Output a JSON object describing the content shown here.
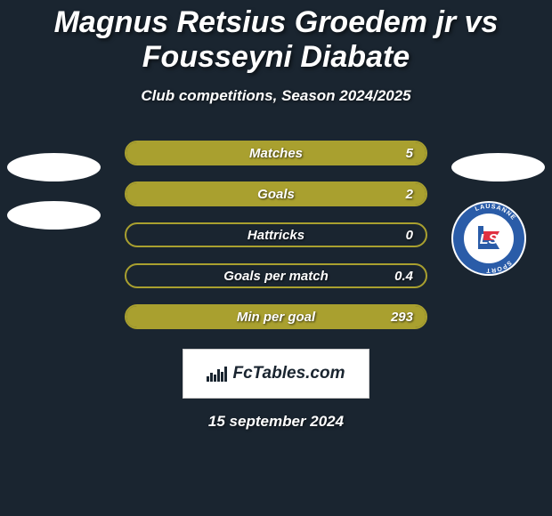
{
  "title": "Magnus Retsius Groedem jr vs Fousseyni Diabate",
  "subtitle": "Club competitions, Season 2024/2025",
  "accent_color": "#a9a02f",
  "background_color": "#1a2530",
  "stats": [
    {
      "label": "Matches",
      "value": "5",
      "fill_pct": 100
    },
    {
      "label": "Goals",
      "value": "2",
      "fill_pct": 100
    },
    {
      "label": "Hattricks",
      "value": "0",
      "fill_pct": 0
    },
    {
      "label": "Goals per match",
      "value": "0.4",
      "fill_pct": 0
    },
    {
      "label": "Min per goal",
      "value": "293",
      "fill_pct": 100
    }
  ],
  "footer_brand": "FcTables.com",
  "date": "15 september 2024",
  "badge": {
    "ring_text": "LAUSANNE SPORT",
    "ring_color": "#2a5ca8",
    "inner_bg": "#ffffff"
  }
}
